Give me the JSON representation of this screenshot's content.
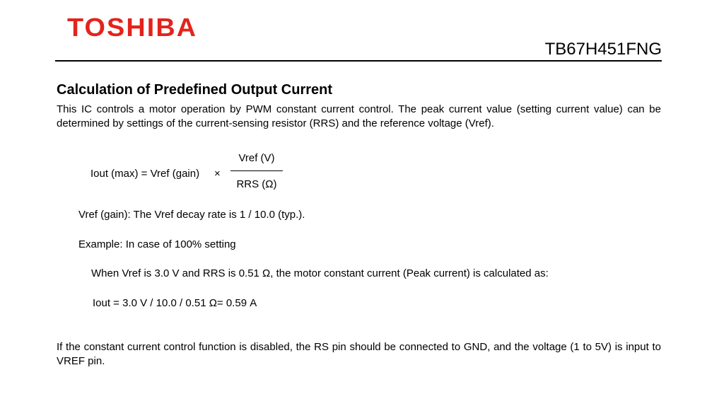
{
  "header": {
    "logo": "TOSHIBA",
    "part_number": "TB67H451FNG",
    "logo_color": "#e3231c"
  },
  "section": {
    "title": "Calculation of Predefined Output Current",
    "intro": "This IC controls a motor operation by PWM constant current control. The peak current value (setting current value) can be determined by settings of the current-sensing resistor (RRS) and the reference voltage (Vref)."
  },
  "formula": {
    "left": "Iout (max) = Vref (gain)",
    "operator": "×",
    "numerator": "Vref (V)",
    "denominator": "RRS (Ω)"
  },
  "notes": {
    "gain": "Vref (gain): The Vref decay rate is 1 / 10.0 (typ.).",
    "example": "Example: In case of 100% setting",
    "when": "When Vref is 3.0 V and RRS is 0.51 Ω, the motor constant current (Peak current) is calculated as:",
    "iout": "Iout = 3.0 V / 10.0 / 0.51 Ω= 0.59 A"
  },
  "footer": {
    "text": "If the constant current control function is disabled, the RS pin should be connected to GND, and the voltage (1 to 5V) is input to VREF pin."
  }
}
